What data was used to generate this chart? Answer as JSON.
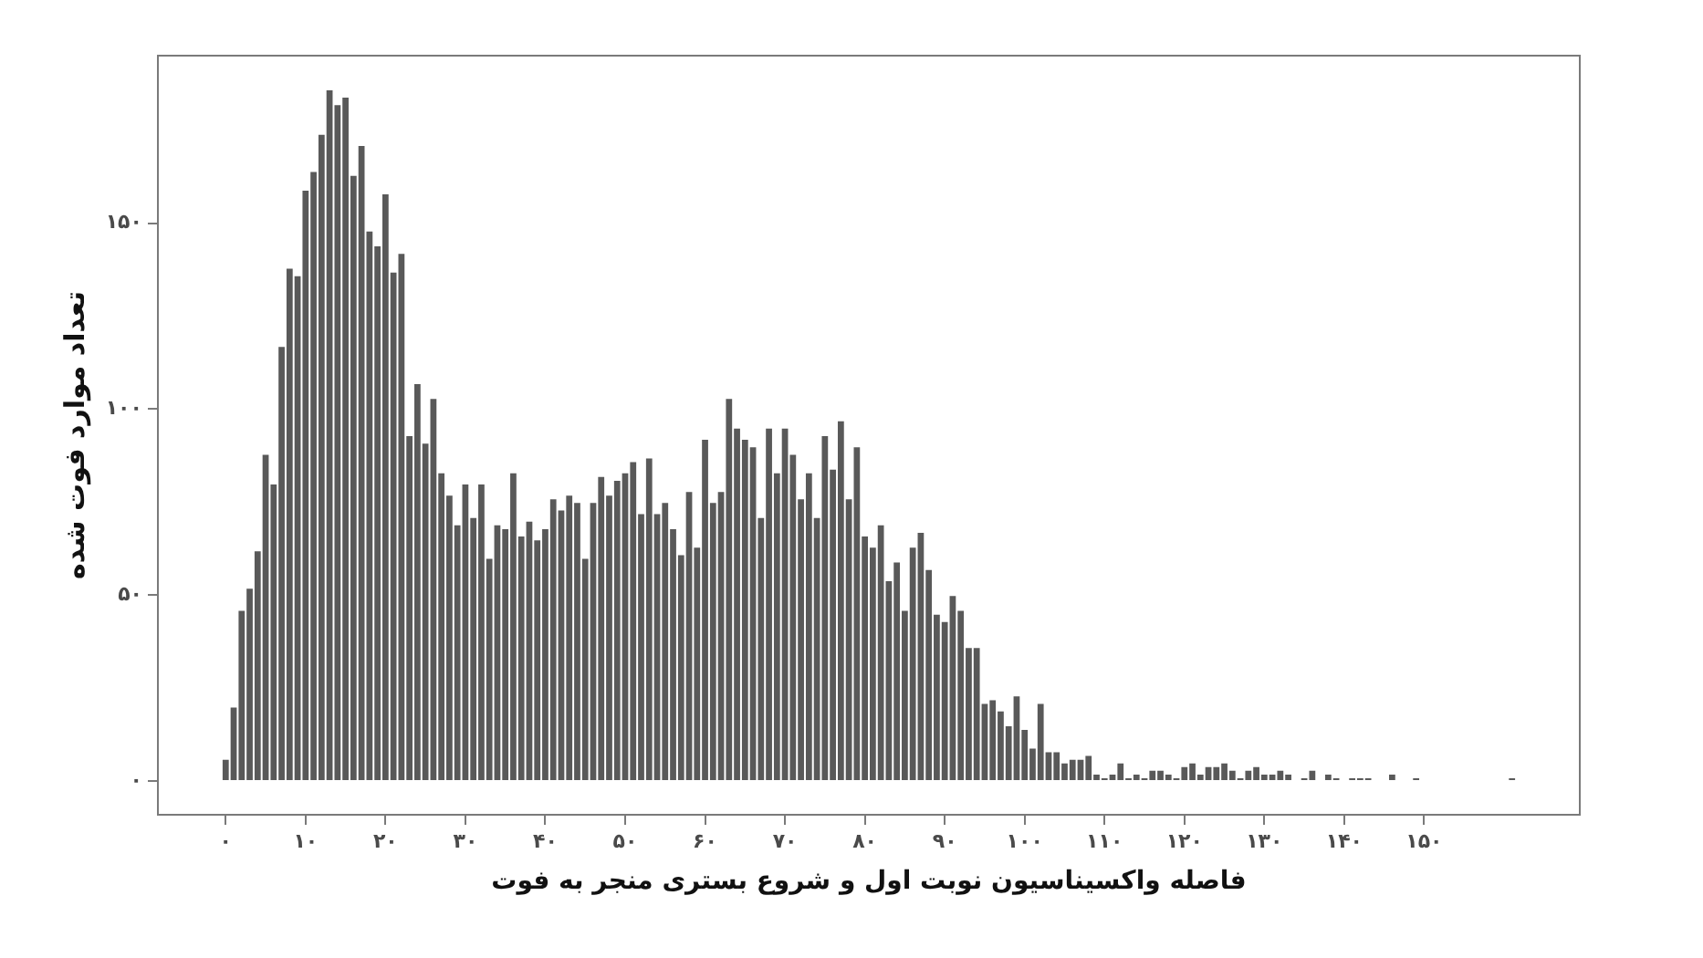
{
  "chart_data": {
    "type": "histogram",
    "xlabel": "فاصله واکسیناسیون نوبت اول و شروع بستری منجر به فوت",
    "ylabel": "تعداد موارد فوت شده",
    "bins": [
      -0.5,
      0.5,
      1.5,
      2.5,
      3.5,
      4.5,
      5.5,
      6.5,
      7.5,
      8.5,
      9.5,
      10.5,
      11.5,
      12.5,
      13.5,
      14.5,
      15.5,
      16.5,
      17.5,
      18.5,
      19.5,
      20.5,
      21.5,
      22.5,
      23.5,
      24.5,
      25.5,
      26.5,
      27.5,
      28.5,
      29.5,
      30.5,
      31.5,
      32.5,
      33.5,
      34.5,
      35.5,
      36.5,
      37.5,
      38.5,
      39.5,
      40.5,
      41.5,
      42.5,
      43.5,
      44.5,
      45.5,
      46.5,
      47.5,
      48.5,
      49.5,
      50.5,
      51.5,
      52.5,
      53.5,
      54.5,
      55.5,
      56.5,
      57.5,
      58.5,
      59.5,
      60.5,
      61.5,
      62.5,
      63.5,
      64.5,
      65.5,
      66.5,
      67.5,
      68.5,
      69.5,
      70.5,
      71.5,
      72.5,
      73.5,
      74.5,
      75.5,
      76.5,
      77.5,
      78.5,
      79.5,
      80.5,
      81.5,
      82.5,
      83.5,
      84.5,
      85.5,
      86.5,
      87.5,
      88.5,
      89.5,
      90.5,
      91.5,
      92.5,
      93.5,
      94.5,
      95.5,
      96.5,
      97.5,
      98.5,
      99.5,
      100.5,
      101.5,
      102.5,
      103.5,
      104.5,
      105.5,
      106.5,
      107.5,
      108.5,
      109.5,
      110.5,
      111.5,
      112.5,
      113.5,
      114.5,
      115.5,
      116.5,
      117.5,
      118.5,
      119.5,
      120.5,
      121.5,
      122.5,
      123.5,
      124.5,
      125.5,
      126.5,
      127.5,
      128.5,
      129.5,
      130.5,
      131.5,
      132.5,
      133.5,
      134.5,
      135.5,
      136.5,
      137.5,
      138.5,
      139.5,
      140.5,
      141.5,
      142.5,
      143.5,
      145.5,
      146.5,
      148.5,
      149.5,
      160.5,
      161.5
    ],
    "values": [
      6,
      20,
      46,
      52,
      62,
      88,
      80,
      117,
      138,
      136,
      159,
      164,
      174,
      186,
      182,
      184,
      163,
      171,
      148,
      144,
      158,
      137,
      142,
      93,
      107,
      91,
      103,
      83,
      77,
      69,
      80,
      71,
      80,
      60,
      69,
      68,
      83,
      66,
      70,
      65,
      68,
      76,
      73,
      77,
      75,
      60,
      75,
      82,
      77,
      81,
      83,
      86,
      72,
      87,
      72,
      75,
      68,
      61,
      78,
      63,
      92,
      75,
      78,
      103,
      95,
      92,
      90,
      71,
      95,
      83,
      95,
      88,
      76,
      83,
      71,
      93,
      84,
      97,
      76,
      90,
      66,
      63,
      69,
      54,
      59,
      46,
      63,
      67,
      57,
      45,
      43,
      50,
      46,
      36,
      36,
      21,
      22,
      19,
      15,
      23,
      14,
      9,
      21,
      8,
      8,
      5,
      6,
      6,
      7,
      2,
      1,
      2,
      5,
      1,
      2,
      1,
      3,
      3,
      2,
      1,
      4,
      5,
      2,
      4,
      4,
      5,
      3,
      1,
      3,
      4,
      2,
      2,
      3,
      2,
      0,
      1,
      3,
      0,
      2,
      1,
      0,
      1,
      1,
      1,
      0,
      2,
      0,
      1,
      0,
      1
    ],
    "color": "#595959",
    "xlim": [
      -8.6,
      169.6
    ],
    "ylim": [
      -9.3,
      195.3
    ],
    "xticks": [
      {
        "value": 0,
        "label": "۰"
      },
      {
        "value": 10,
        "label": "۱۰"
      },
      {
        "value": 20,
        "label": "۲۰"
      },
      {
        "value": 30,
        "label": "۳۰"
      },
      {
        "value": 40,
        "label": "۴۰"
      },
      {
        "value": 50,
        "label": "۵۰"
      },
      {
        "value": 60,
        "label": "۶۰"
      },
      {
        "value": 70,
        "label": "۷۰"
      },
      {
        "value": 80,
        "label": "۸۰"
      },
      {
        "value": 90,
        "label": "۹۰"
      },
      {
        "value": 100,
        "label": "۱۰۰"
      },
      {
        "value": 110,
        "label": "۱۱۰"
      },
      {
        "value": 120,
        "label": "۱۲۰"
      },
      {
        "value": 130,
        "label": "۱۳۰"
      },
      {
        "value": 140,
        "label": "۱۴۰"
      },
      {
        "value": 150,
        "label": "۱۵۰"
      }
    ],
    "yticks": [
      {
        "value": 0,
        "label": "۰"
      },
      {
        "value": 50,
        "label": "۵۰"
      },
      {
        "value": 100,
        "label": "۱۰۰"
      },
      {
        "value": 150,
        "label": "۱۵۰"
      }
    ],
    "grid": false
  }
}
